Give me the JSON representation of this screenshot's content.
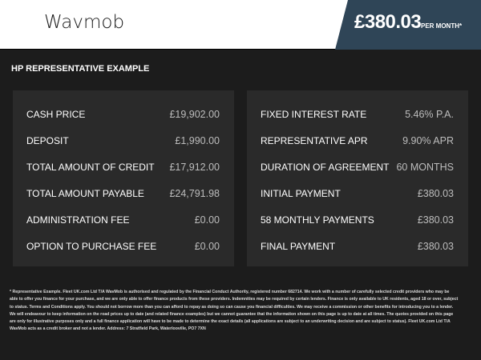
{
  "header": {
    "logo": "Wavmob",
    "monthly_price": "£380.03",
    "per_month": "PER MONTH*"
  },
  "section_title": "HP REPRESENTATIVE EXAMPLE",
  "left": [
    {
      "label": "CASH PRICE",
      "value": "£19,902.00"
    },
    {
      "label": "DEPOSIT",
      "value": "£1,990.00"
    },
    {
      "label": "TOTAL AMOUNT OF CREDIT",
      "value": "£17,912.00"
    },
    {
      "label": "TOTAL AMOUNT PAYABLE",
      "value": "£24,791.98"
    },
    {
      "label": "ADMINISTRATION FEE",
      "value": "£0.00"
    },
    {
      "label": "OPTION TO PURCHASE FEE",
      "value": "£0.00"
    }
  ],
  "right": [
    {
      "label": "FIXED INTEREST RATE",
      "value": "5.46% P.A."
    },
    {
      "label": "REPRESENTATIVE APR",
      "value": "9.90% APR"
    },
    {
      "label": "DURATION OF AGREEMENT",
      "value": "60 MONTHS"
    },
    {
      "label": "INITIAL PAYMENT",
      "value": "£380.03"
    },
    {
      "label": "58 MONTHLY PAYMENTS",
      "value": "£380.03"
    },
    {
      "label": "FINAL PAYMENT",
      "value": "£380.03"
    }
  ],
  "disclaimer": "* Representative Example. Fleet UK.com Ltd T/A WavMob is authorised and regulated by the Financial Conduct Authority, registered number 682714. We work with a number of carefully selected credit providers who may be able to offer you finance for your purchase, and we are only able to offer finance products from these providers. Indemnities may be required by certain lenders. Finance is only available to UK residents, aged 18 or over, subject to status. Terms and Conditions apply. You should not borrow more than you can afford to repay as doing so can cause you financial difficulties. We may receive a commission or other benefits for introducing you to a lender. We will endeavour to keep information on the road prices up to date (and related finance examples) but we cannot guarantee that the information shown on this page is up to date at all times. The quotes provided on this page are only for illustrative purposes only and a full finance application will have to be made to determine the exact details (all applications are subject to an underwriting decision and are subject to status). Fleet UK.com Ltd T/A WavMob acts as a credit broker and not a lender. Address: 7 Stratfield Park, Waterlooville, PO7 7XN"
}
